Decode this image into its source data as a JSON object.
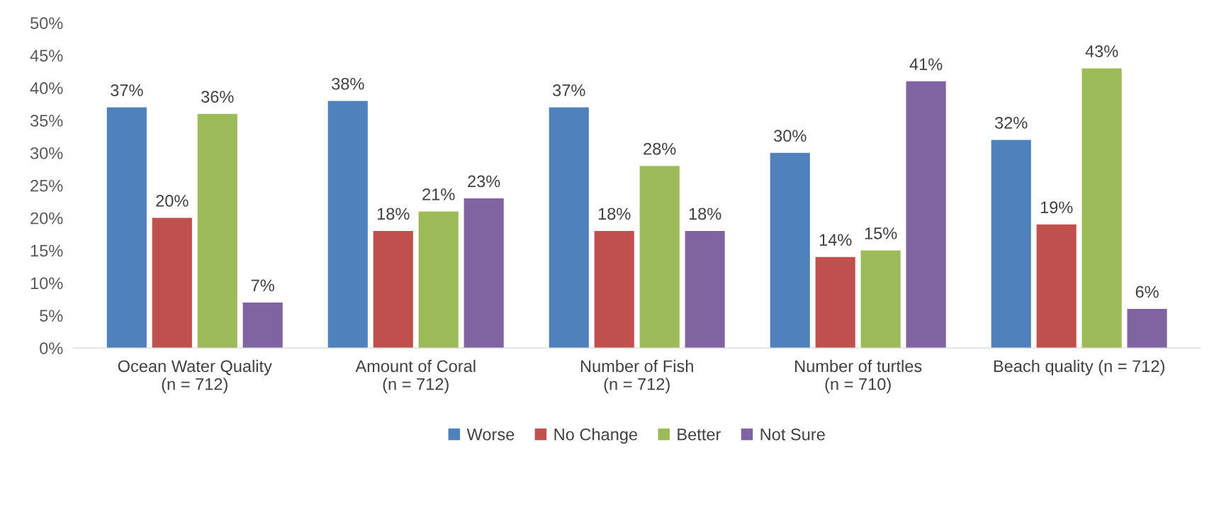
{
  "chart_data": {
    "type": "bar",
    "categories": [
      "Ocean Water Quality\n(n = 712)",
      "Amount of Coral\n(n = 712)",
      "Number of Fish\n(n = 712)",
      "Number of turtles\n(n = 710)",
      "Beach quality (n = 712)"
    ],
    "series": [
      {
        "name": "Worse",
        "color": "#4f81bd",
        "values": [
          37,
          38,
          37,
          30,
          32
        ],
        "value_labels": [
          "37%",
          "38%",
          "37%",
          "30%",
          "32%"
        ]
      },
      {
        "name": "No Change",
        "color": "#c0504d",
        "values": [
          20,
          18,
          18,
          14,
          19
        ],
        "value_labels": [
          "20%",
          "18%",
          "18%",
          "14%",
          "19%"
        ]
      },
      {
        "name": "Better",
        "color": "#9bbb59",
        "values": [
          36,
          21,
          28,
          15,
          43
        ],
        "value_labels": [
          "36%",
          "21%",
          "28%",
          "15%",
          "43%"
        ]
      },
      {
        "name": "Not Sure",
        "color": "#8064a2",
        "values": [
          7,
          23,
          18,
          41,
          6
        ],
        "value_labels": [
          "7%",
          "23%",
          "18%",
          "41%",
          "6%"
        ]
      }
    ],
    "ylim": [
      0,
      50
    ],
    "yticks": [
      {
        "value": 0,
        "label": "0%"
      },
      {
        "value": 5,
        "label": "5%"
      },
      {
        "value": 10,
        "label": "10%"
      },
      {
        "value": 15,
        "label": "15%"
      },
      {
        "value": 20,
        "label": "20%"
      },
      {
        "value": 25,
        "label": "25%"
      },
      {
        "value": 30,
        "label": "30%"
      },
      {
        "value": 35,
        "label": "35%"
      },
      {
        "value": 40,
        "label": "40%"
      },
      {
        "value": 45,
        "label": "45%"
      },
      {
        "value": 50,
        "label": "50%"
      }
    ],
    "grid": false,
    "legend": "bottom"
  }
}
